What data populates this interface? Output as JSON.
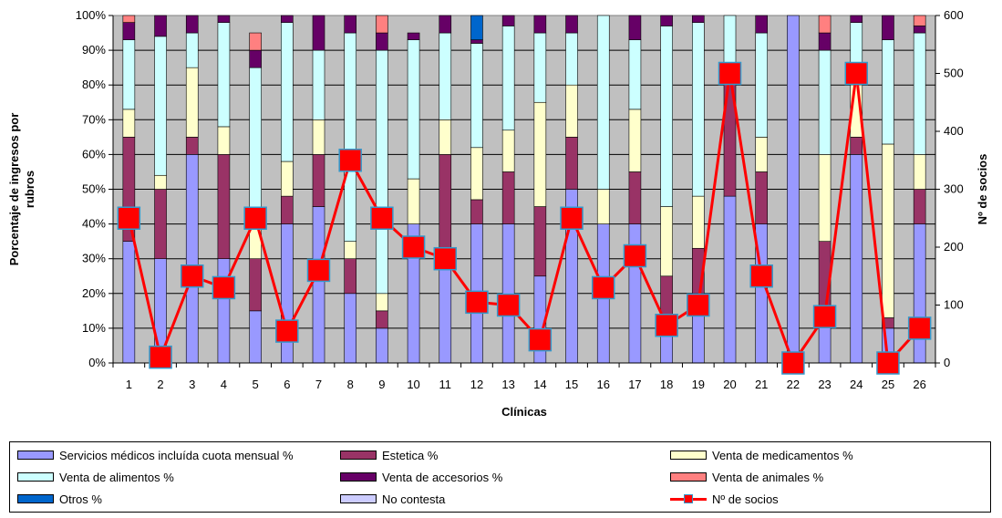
{
  "chart_data": {
    "type": "bar",
    "stacked": true,
    "categories": [
      "1",
      "2",
      "3",
      "4",
      "5",
      "6",
      "7",
      "8",
      "9",
      "10",
      "11",
      "12",
      "13",
      "14",
      "15",
      "16",
      "17",
      "18",
      "19",
      "20",
      "21",
      "22",
      "23",
      "24",
      "25",
      "26"
    ],
    "xlabel": "Clínicas",
    "ylabel": "Porcentaje de ingresos por rubros",
    "y2label": "Nº de socios",
    "ylim": [
      0,
      100
    ],
    "y2lim": [
      0,
      600
    ],
    "yticks": [
      "0%",
      "10%",
      "20%",
      "30%",
      "40%",
      "50%",
      "60%",
      "70%",
      "80%",
      "90%",
      "100%"
    ],
    "y2ticks": [
      "0",
      "100",
      "200",
      "300",
      "400",
      "500",
      "600"
    ],
    "grid": true,
    "plot_background": "#C0C0C0",
    "legend_position": "bottom",
    "series": [
      {
        "name": "Servicios médicos incluída cuota mensual %",
        "color": "#9999FF",
        "values": [
          35,
          30,
          60,
          30,
          15,
          40,
          45,
          20,
          10,
          40,
          30,
          40,
          40,
          25,
          50,
          40,
          40,
          10,
          20,
          48,
          40,
          100,
          15,
          60,
          10,
          40
        ]
      },
      {
        "name": "Estetica %",
        "color": "#993366",
        "values": [
          30,
          20,
          5,
          30,
          15,
          8,
          15,
          10,
          5,
          0,
          30,
          7,
          15,
          20,
          15,
          0,
          15,
          15,
          13,
          35,
          15,
          0,
          20,
          5,
          3,
          10
        ]
      },
      {
        "name": "Venta de medicamentos %",
        "color": "#FFFFCC",
        "values": [
          8,
          4,
          20,
          8,
          10,
          10,
          10,
          5,
          5,
          13,
          10,
          15,
          12,
          30,
          15,
          10,
          18,
          20,
          15,
          0,
          10,
          0,
          25,
          15,
          50,
          10
        ]
      },
      {
        "name": "Venta de alimentos %",
        "color": "#CCFFFF",
        "values": [
          20,
          40,
          10,
          30,
          45,
          40,
          20,
          60,
          70,
          40,
          25,
          30,
          30,
          20,
          15,
          50,
          20,
          52,
          50,
          17,
          30,
          0,
          30,
          18,
          30,
          35
        ]
      },
      {
        "name": "Venta de accesorios %",
        "color": "#660066",
        "values": [
          5,
          6,
          5,
          2,
          5,
          2,
          10,
          5,
          5,
          2,
          5,
          1,
          3,
          5,
          5,
          0,
          7,
          3,
          2,
          0,
          5,
          0,
          5,
          2,
          7,
          2
        ]
      },
      {
        "name": "Venta de animales %",
        "color": "#FF8080",
        "values": [
          2,
          0,
          0,
          0,
          5,
          0,
          0,
          0,
          5,
          0,
          0,
          0,
          0,
          0,
          0,
          0,
          0,
          0,
          0,
          0,
          0,
          0,
          5,
          0,
          0,
          3
        ]
      },
      {
        "name": "Otros %",
        "color": "#0066CC",
        "values": [
          0,
          0,
          0,
          0,
          0,
          0,
          0,
          0,
          0,
          0,
          0,
          7,
          0,
          0,
          0,
          0,
          0,
          0,
          0,
          0,
          0,
          0,
          0,
          0,
          0,
          0
        ]
      },
      {
        "name": "No contesta",
        "color": "#CCCCFF",
        "values": [
          0,
          0,
          0,
          0,
          0,
          0,
          0,
          0,
          0,
          0,
          0,
          0,
          0,
          0,
          0,
          0,
          0,
          0,
          0,
          0,
          0,
          0,
          0,
          0,
          0,
          0
        ]
      }
    ],
    "line_series": {
      "name": "Nº de socios",
      "axis": "secondary",
      "color": "#FF0000",
      "marker_edge": "#3399CC",
      "values": [
        250,
        10,
        150,
        130,
        250,
        55,
        160,
        350,
        250,
        200,
        180,
        105,
        100,
        40,
        250,
        130,
        185,
        65,
        100,
        500,
        150,
        0,
        80,
        500,
        0,
        60
      ]
    }
  }
}
